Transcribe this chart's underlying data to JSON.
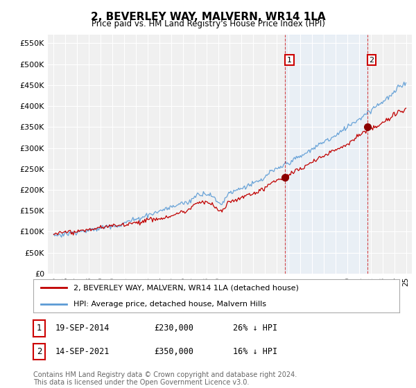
{
  "title": "2, BEVERLEY WAY, MALVERN, WR14 1LA",
  "subtitle": "Price paid vs. HM Land Registry's House Price Index (HPI)",
  "ylim": [
    0,
    560000
  ],
  "yticks": [
    0,
    50000,
    100000,
    150000,
    200000,
    250000,
    300000,
    350000,
    400000,
    450000,
    500000,
    550000
  ],
  "ytick_labels": [
    "£0",
    "£50K",
    "£100K",
    "£150K",
    "£200K",
    "£250K",
    "£300K",
    "£350K",
    "£400K",
    "£450K",
    "£500K",
    "£550K"
  ],
  "hpi_color": "#5b9bd5",
  "price_color": "#c00000",
  "sale1_year": 2014.72,
  "sale1_price": 230000,
  "sale2_year": 2021.71,
  "sale2_price": 350000,
  "shade_color": "#ddeeff",
  "legend_items": [
    {
      "label": "2, BEVERLEY WAY, MALVERN, WR14 1LA (detached house)",
      "color": "#c00000"
    },
    {
      "label": "HPI: Average price, detached house, Malvern Hills",
      "color": "#5b9bd5"
    }
  ],
  "annotation1": {
    "num": "1",
    "date": "19-SEP-2014",
    "price": "£230,000",
    "note": "26% ↓ HPI"
  },
  "annotation2": {
    "num": "2",
    "date": "14-SEP-2021",
    "price": "£350,000",
    "note": "16% ↓ HPI"
  },
  "footer": "Contains HM Land Registry data © Crown copyright and database right 2024.\nThis data is licensed under the Open Government Licence v3.0.",
  "background_color": "#ffffff",
  "plot_bg_color": "#f0f0f0",
  "grid_color": "#ffffff"
}
